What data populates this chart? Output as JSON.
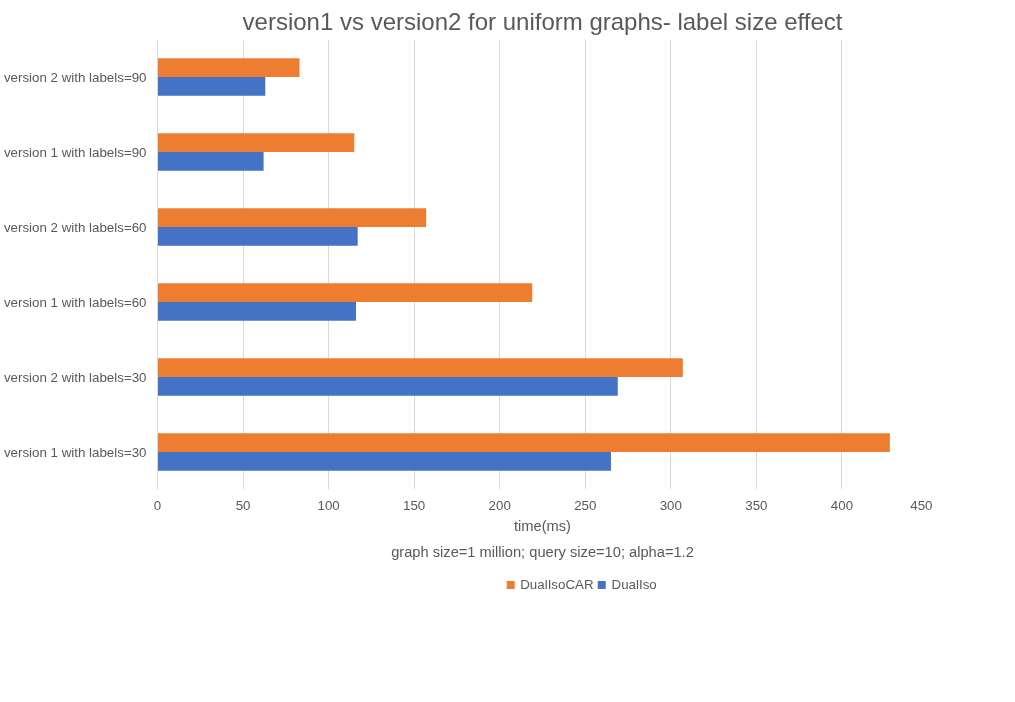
{
  "chart_data": {
    "type": "bar",
    "orientation": "horizontal",
    "title": "version1 vs version2 for uniform graphs- label size effect",
    "xlabel": "time(ms)",
    "annotations": [
      "graph size=1 million; query size=10; alpha=1.2"
    ],
    "categories": [
      "version 2 with labels=90",
      "version 1 with labels=90",
      "version 2 with labels=60",
      "version 1 with labels=60",
      "version 2 with labels=30",
      "version 1 with labels=30"
    ],
    "series": [
      {
        "name": "DualIsoCAR",
        "color": "#ed7d31",
        "values": [
          83,
          115,
          157,
          219,
          307,
          428
        ]
      },
      {
        "name": "DualIso",
        "color": "#4472c4",
        "values": [
          63,
          62,
          117,
          116,
          269,
          265
        ]
      }
    ],
    "xlim": [
      0,
      450
    ],
    "xticks": [
      0,
      50,
      100,
      150,
      200,
      250,
      300,
      350,
      400,
      450
    ],
    "grid": "x",
    "legend": "bottom"
  }
}
